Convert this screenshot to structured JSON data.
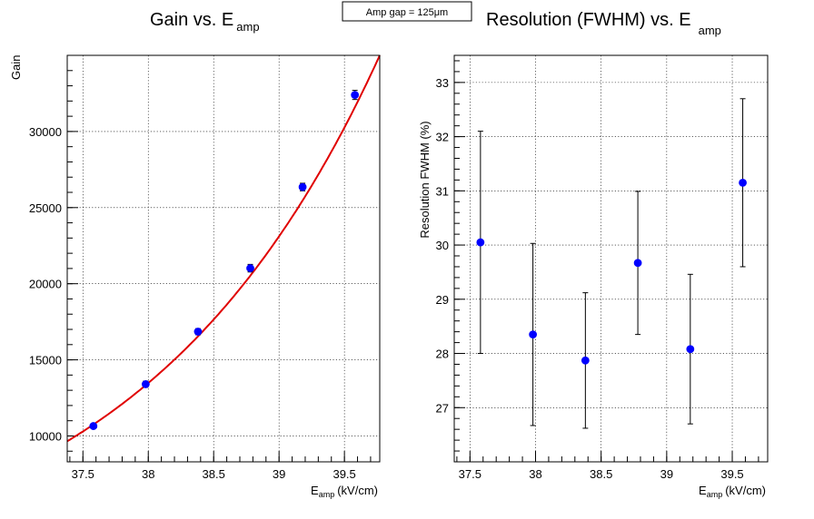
{
  "banner": {
    "text": "Amp gap = 125μm"
  },
  "chart_data": [
    {
      "type": "scatter",
      "title": "Gain vs. E",
      "title_subscript": "amp",
      "xlabel": "E",
      "xlabel_subscript": "amp",
      "xlabel_units": "(kV/cm)",
      "ylabel": "Gain",
      "xlim": [
        37.38,
        39.77
      ],
      "ylim": [
        8300,
        35000
      ],
      "xticks": [
        37.5,
        38,
        38.5,
        39,
        39.5
      ],
      "xtick_labels": [
        "37.5",
        "38",
        "38.5",
        "39",
        "39.5"
      ],
      "yticks": [
        10000,
        15000,
        20000,
        25000,
        30000
      ],
      "ytick_labels": [
        "10000",
        "15000",
        "20000",
        "25000",
        "30000"
      ],
      "grid": true,
      "series": [
        {
          "x": [
            37.58,
            37.98,
            38.38,
            38.78,
            39.18,
            39.58
          ],
          "y": [
            10650,
            13400,
            16850,
            21020,
            26350,
            32400
          ],
          "yerr": [
            150,
            200,
            200,
            250,
            250,
            300
          ],
          "color": "#0000ff"
        }
      ],
      "fit": {
        "color": "#e00000",
        "x_range": [
          37.38,
          39.77
        ],
        "y_at_start": 9650,
        "y_at_end": 35000
      }
    },
    {
      "type": "scatter",
      "title": "Resolution (FWHM) vs. E",
      "title_subscript": "amp",
      "xlabel": "E",
      "xlabel_subscript": "amp",
      "xlabel_units": "(kV/cm)",
      "ylabel": "Resolution FWHM (%)",
      "xlim": [
        37.38,
        39.77
      ],
      "ylim": [
        26.0,
        33.5
      ],
      "xticks": [
        37.5,
        38,
        38.5,
        39,
        39.5
      ],
      "xtick_labels": [
        "37.5",
        "38",
        "38.5",
        "39",
        "39.5"
      ],
      "yticks": [
        27,
        28,
        29,
        30,
        31,
        32,
        33
      ],
      "ytick_labels": [
        "27",
        "28",
        "29",
        "30",
        "31",
        "32",
        "33"
      ],
      "grid": true,
      "series": [
        {
          "x": [
            37.58,
            37.98,
            38.38,
            38.78,
            39.18,
            39.58
          ],
          "y": [
            30.05,
            28.35,
            27.87,
            29.67,
            28.08,
            31.15
          ],
          "yerr_low": [
            2.05,
            1.68,
            1.25,
            1.32,
            1.38,
            1.55
          ],
          "yerr_high": [
            2.05,
            1.68,
            1.25,
            1.32,
            1.38,
            1.55
          ],
          "color": "#0000ff"
        }
      ]
    }
  ]
}
